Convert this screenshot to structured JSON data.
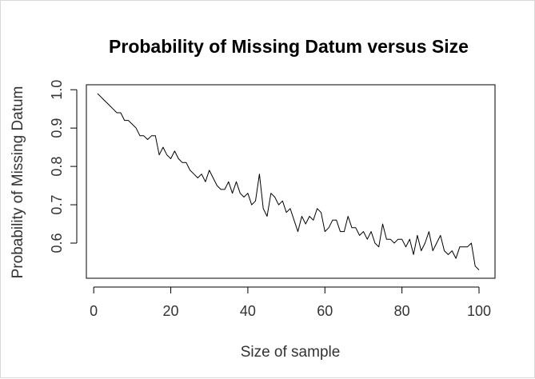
{
  "chart_data": {
    "type": "line",
    "title": "Probability of Missing Datum versus Size",
    "xlabel": "Size of sample",
    "ylabel": "Probability of Missing Datum",
    "xlim": [
      1,
      100
    ],
    "ylim": [
      0.525,
      0.99
    ],
    "xticks": [
      0,
      20,
      40,
      60,
      80,
      100
    ],
    "xtick_labels": [
      "0",
      "20",
      "40",
      "60",
      "80",
      "100"
    ],
    "yticks": [
      0.6,
      0.7,
      0.8,
      0.9,
      1.0
    ],
    "ytick_labels": [
      "0.6",
      "0.7",
      "0.8",
      "0.9",
      "1.0"
    ],
    "grid": false,
    "legend": "none",
    "series": [
      {
        "color": "#000000",
        "x": [
          1,
          2,
          3,
          4,
          5,
          6,
          7,
          8,
          9,
          10,
          11,
          12,
          13,
          14,
          15,
          16,
          17,
          18,
          19,
          20,
          21,
          22,
          23,
          24,
          25,
          26,
          27,
          28,
          29,
          30,
          31,
          32,
          33,
          34,
          35,
          36,
          37,
          38,
          39,
          40,
          41,
          42,
          43,
          44,
          45,
          46,
          47,
          48,
          49,
          50,
          51,
          52,
          53,
          54,
          55,
          56,
          57,
          58,
          59,
          60,
          61,
          62,
          63,
          64,
          65,
          66,
          67,
          68,
          69,
          70,
          71,
          72,
          73,
          74,
          75,
          76,
          77,
          78,
          79,
          80,
          81,
          82,
          83,
          84,
          85,
          86,
          87,
          88,
          89,
          90,
          91,
          92,
          93,
          94,
          95,
          96,
          97,
          98,
          99,
          100
        ],
        "values": [
          0.99,
          0.98,
          0.97,
          0.96,
          0.95,
          0.94,
          0.94,
          0.92,
          0.92,
          0.91,
          0.9,
          0.88,
          0.88,
          0.87,
          0.88,
          0.88,
          0.83,
          0.85,
          0.83,
          0.82,
          0.84,
          0.82,
          0.81,
          0.81,
          0.79,
          0.78,
          0.77,
          0.78,
          0.76,
          0.79,
          0.77,
          0.75,
          0.74,
          0.74,
          0.76,
          0.73,
          0.76,
          0.73,
          0.72,
          0.73,
          0.7,
          0.71,
          0.78,
          0.69,
          0.67,
          0.73,
          0.72,
          0.7,
          0.71,
          0.68,
          0.69,
          0.66,
          0.63,
          0.67,
          0.65,
          0.67,
          0.66,
          0.69,
          0.68,
          0.63,
          0.64,
          0.66,
          0.66,
          0.63,
          0.63,
          0.67,
          0.64,
          0.64,
          0.62,
          0.63,
          0.61,
          0.63,
          0.6,
          0.59,
          0.65,
          0.61,
          0.61,
          0.6,
          0.61,
          0.61,
          0.59,
          0.61,
          0.57,
          0.62,
          0.58,
          0.6,
          0.63,
          0.58,
          0.6,
          0.62,
          0.58,
          0.57,
          0.58,
          0.56,
          0.59,
          0.59,
          0.59,
          0.6,
          0.54,
          0.53
        ]
      }
    ]
  }
}
